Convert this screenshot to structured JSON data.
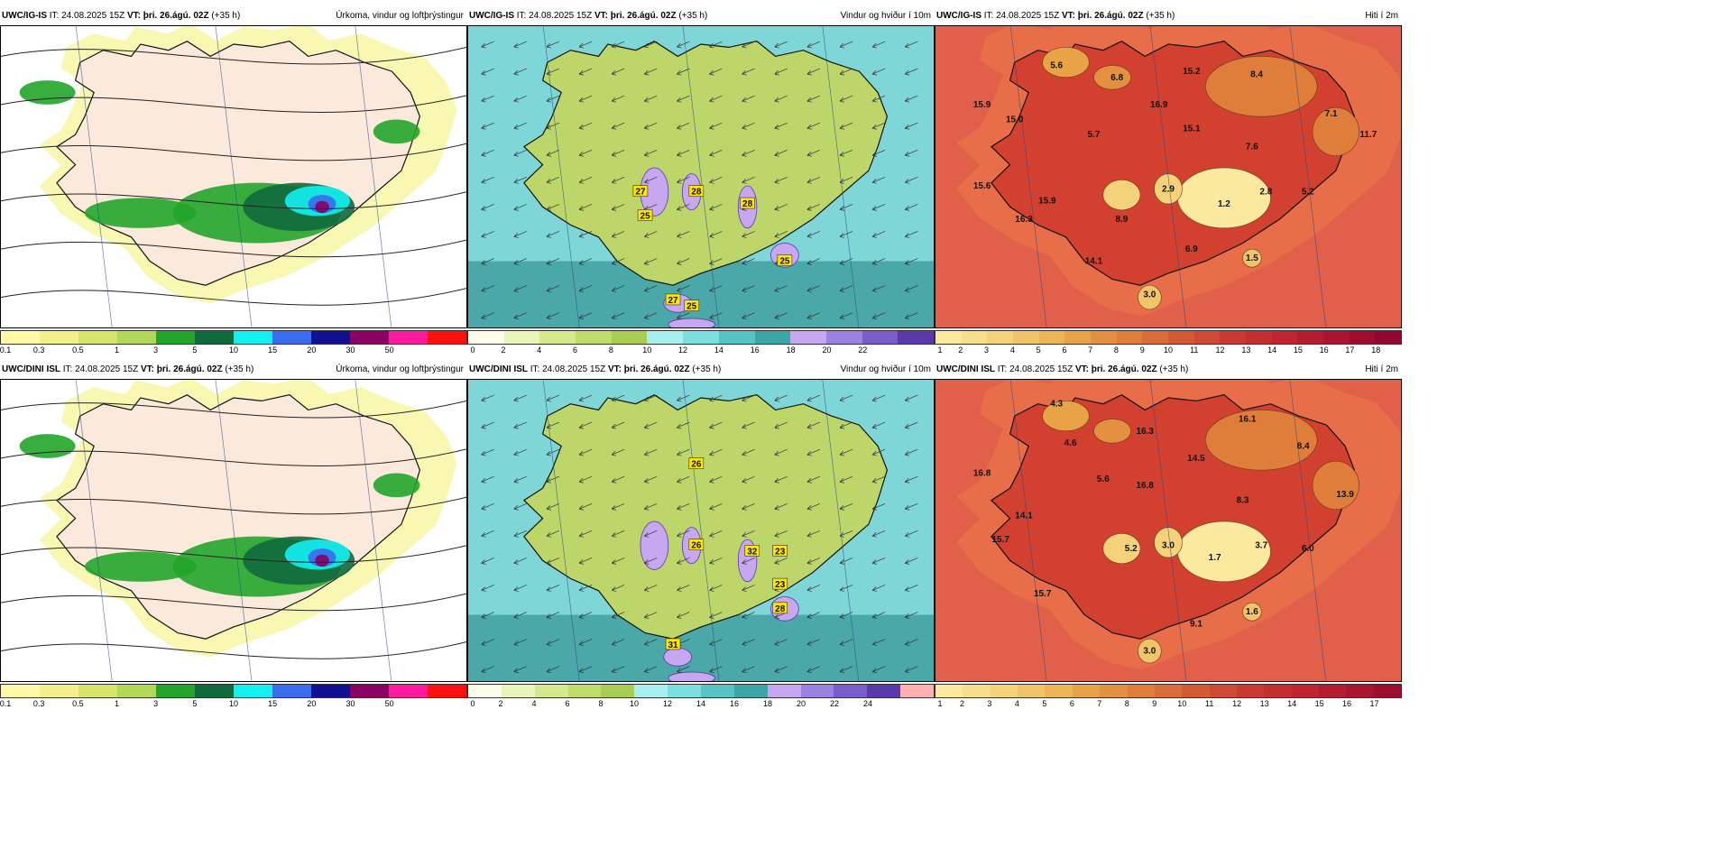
{
  "panels": [
    {
      "id": "p1",
      "model": "UWC/IG-IS",
      "it": "24.08.2025 15Z",
      "vt": "þri. 26.ágú. 02Z",
      "lead": "(+35 h)",
      "title": "Úrkoma, vindur og loftþrýstingur",
      "kind": "precip",
      "colorbar": {
        "colors": [
          "#fff9a8",
          "#f3f08a",
          "#d6e46a",
          "#b2d85a",
          "#22a52a",
          "#116a3d",
          "#12f0f0",
          "#3a6cf0",
          "#101090",
          "#8a0063",
          "#ff1a9e",
          "#ff1010"
        ],
        "labels": [
          "0.1",
          "0.3",
          "0.5",
          "1",
          "3",
          "5",
          "10",
          "15",
          "20",
          "30",
          "50"
        ]
      },
      "values": []
    },
    {
      "id": "p2",
      "model": "UWC/IG-IS",
      "it": "24.08.2025 15Z",
      "vt": "þri. 26.ágú. 02Z",
      "lead": "(+35 h)",
      "title": "Vindur og hviður í 10m",
      "kind": "wind",
      "colorbar": {
        "colors": [
          "#fbfde8",
          "#e8f4b8",
          "#d3e98a",
          "#bfdc6a",
          "#a9cc52",
          "#a8f0f0",
          "#7ddede",
          "#56c4c4",
          "#3aa6a6",
          "#c7a7f0",
          "#9b82e0",
          "#7a5ccc",
          "#5a3aaa"
        ],
        "labels": [
          "0",
          "2",
          "4",
          "6",
          "8",
          "10",
          "12",
          "14",
          "16",
          "18",
          "20",
          "22"
        ]
      },
      "values": [
        {
          "v": "27",
          "x": 0.37,
          "y": 0.55
        },
        {
          "v": "28",
          "x": 0.49,
          "y": 0.55
        },
        {
          "v": "25",
          "x": 0.38,
          "y": 0.63
        },
        {
          "v": "28",
          "x": 0.6,
          "y": 0.59
        },
        {
          "v": "25",
          "x": 0.68,
          "y": 0.78
        },
        {
          "v": "27",
          "x": 0.44,
          "y": 0.91
        },
        {
          "v": "25",
          "x": 0.48,
          "y": 0.93
        }
      ]
    },
    {
      "id": "p3",
      "model": "UWC/IG-IS",
      "it": "24.08.2025 15Z",
      "vt": "þri. 26.ágú. 02Z",
      "lead": "(+35 h)",
      "title": "Hiti í 2m",
      "kind": "temp",
      "colorbar": {
        "colors": [
          "#fbe9a0",
          "#f7de8a",
          "#f4d27a",
          "#f0c468",
          "#ecb556",
          "#e8a346",
          "#e39040",
          "#de7e3a",
          "#d96c38",
          "#d45a36",
          "#cf4a34",
          "#ca3a32",
          "#c52e30",
          "#bf2430",
          "#b51c30",
          "#aa1430",
          "#9e0c30",
          "#920630"
        ],
        "labels": [
          "1",
          "2",
          "3",
          "4",
          "5",
          "6",
          "7",
          "8",
          "9",
          "10",
          "11",
          "12",
          "13",
          "14",
          "15",
          "16",
          "17",
          "18"
        ]
      },
      "values": [
        {
          "v": "5.6",
          "x": 0.26,
          "y": 0.13
        },
        {
          "v": "6.8",
          "x": 0.39,
          "y": 0.17
        },
        {
          "v": "15.2",
          "x": 0.55,
          "y": 0.15
        },
        {
          "v": "8.4",
          "x": 0.69,
          "y": 0.16
        },
        {
          "v": "15.9",
          "x": 0.1,
          "y": 0.26
        },
        {
          "v": "15.0",
          "x": 0.17,
          "y": 0.31
        },
        {
          "v": "16.9",
          "x": 0.48,
          "y": 0.26
        },
        {
          "v": "15.1",
          "x": 0.55,
          "y": 0.34
        },
        {
          "v": "7.1",
          "x": 0.85,
          "y": 0.29
        },
        {
          "v": "5.7",
          "x": 0.34,
          "y": 0.36
        },
        {
          "v": "7.6",
          "x": 0.68,
          "y": 0.4
        },
        {
          "v": "11.7",
          "x": 0.93,
          "y": 0.36
        },
        {
          "v": "15.6",
          "x": 0.1,
          "y": 0.53
        },
        {
          "v": "15.9",
          "x": 0.24,
          "y": 0.58
        },
        {
          "v": "2.9",
          "x": 0.5,
          "y": 0.54
        },
        {
          "v": "1.2",
          "x": 0.62,
          "y": 0.59
        },
        {
          "v": "2.8",
          "x": 0.71,
          "y": 0.55
        },
        {
          "v": "5.2",
          "x": 0.8,
          "y": 0.55
        },
        {
          "v": "16.3",
          "x": 0.19,
          "y": 0.64
        },
        {
          "v": "8.9",
          "x": 0.4,
          "y": 0.64
        },
        {
          "v": "6.9",
          "x": 0.55,
          "y": 0.74
        },
        {
          "v": "1.5",
          "x": 0.68,
          "y": 0.77
        },
        {
          "v": "14.1",
          "x": 0.34,
          "y": 0.78
        },
        {
          "v": "3.0",
          "x": 0.46,
          "y": 0.89
        }
      ]
    },
    {
      "id": "p4",
      "model": "UWC/DINI ISL",
      "it": "24.08.2025 15Z",
      "vt": "þri. 26.ágú. 02Z",
      "lead": "(+35 h)",
      "title": "Úrkoma, vindur og loftþrýstingur",
      "kind": "precip",
      "colorbar": {
        "colors": [
          "#fff9a8",
          "#f3f08a",
          "#d6e46a",
          "#b2d85a",
          "#22a52a",
          "#116a3d",
          "#12f0f0",
          "#3a6cf0",
          "#101090",
          "#8a0063",
          "#ff1a9e",
          "#ff1010"
        ],
        "labels": [
          "0.1",
          "0.3",
          "0.5",
          "1",
          "3",
          "5",
          "10",
          "15",
          "20",
          "30",
          "50"
        ]
      },
      "values": []
    },
    {
      "id": "p5",
      "model": "UWC/DINI ISL",
      "it": "24.08.2025 15Z",
      "vt": "þri. 26.ágú. 02Z",
      "lead": "(+35 h)",
      "title": "Vindur og hviður í 10m",
      "kind": "wind",
      "colorbar": {
        "colors": [
          "#fbfde8",
          "#e8f4b8",
          "#d3e98a",
          "#bfdc6a",
          "#a9cc52",
          "#a8f0f0",
          "#7ddede",
          "#56c4c4",
          "#3aa6a6",
          "#c7a7f0",
          "#9b82e0",
          "#7a5ccc",
          "#5a3aaa",
          "#ffb0b0"
        ],
        "labels": [
          "0",
          "2",
          "4",
          "6",
          "8",
          "10",
          "12",
          "14",
          "16",
          "18",
          "20",
          "22",
          "24"
        ]
      },
      "values": [
        {
          "v": "26",
          "x": 0.49,
          "y": 0.28
        },
        {
          "v": "26",
          "x": 0.49,
          "y": 0.55
        },
        {
          "v": "32",
          "x": 0.61,
          "y": 0.57
        },
        {
          "v": "23",
          "x": 0.67,
          "y": 0.57
        },
        {
          "v": "23",
          "x": 0.67,
          "y": 0.68
        },
        {
          "v": "28",
          "x": 0.67,
          "y": 0.76
        },
        {
          "v": "31",
          "x": 0.44,
          "y": 0.88
        }
      ]
    },
    {
      "id": "p6",
      "model": "UWC/DINI ISL",
      "it": "24.08.2025 15Z",
      "vt": "þri. 26.ágú. 02Z",
      "lead": "(+35 h)",
      "title": "Hiti í 2m",
      "kind": "temp",
      "colorbar": {
        "colors": [
          "#fbe9a0",
          "#f7de8a",
          "#f4d27a",
          "#f0c468",
          "#ecb556",
          "#e8a346",
          "#e39040",
          "#de7e3a",
          "#d96c38",
          "#d45a36",
          "#cf4a34",
          "#ca3a32",
          "#c52e30",
          "#bf2430",
          "#b51c30",
          "#aa1430",
          "#9e0c30"
        ],
        "labels": [
          "1",
          "2",
          "3",
          "4",
          "5",
          "6",
          "7",
          "8",
          "9",
          "10",
          "11",
          "12",
          "13",
          "14",
          "15",
          "16",
          "17"
        ]
      },
      "values": [
        {
          "v": "4.3",
          "x": 0.26,
          "y": 0.08
        },
        {
          "v": "16.1",
          "x": 0.67,
          "y": 0.13
        },
        {
          "v": "4.6",
          "x": 0.29,
          "y": 0.21
        },
        {
          "v": "16.3",
          "x": 0.45,
          "y": 0.17
        },
        {
          "v": "8.4",
          "x": 0.79,
          "y": 0.22
        },
        {
          "v": "14.5",
          "x": 0.56,
          "y": 0.26
        },
        {
          "v": "16.8",
          "x": 0.1,
          "y": 0.31
        },
        {
          "v": "5.6",
          "x": 0.36,
          "y": 0.33
        },
        {
          "v": "16.8",
          "x": 0.45,
          "y": 0.35
        },
        {
          "v": "8.3",
          "x": 0.66,
          "y": 0.4
        },
        {
          "v": "13.9",
          "x": 0.88,
          "y": 0.38
        },
        {
          "v": "14.1",
          "x": 0.19,
          "y": 0.45
        },
        {
          "v": "5.2",
          "x": 0.42,
          "y": 0.56
        },
        {
          "v": "3.0",
          "x": 0.5,
          "y": 0.55
        },
        {
          "v": "1.7",
          "x": 0.6,
          "y": 0.59
        },
        {
          "v": "3.7",
          "x": 0.7,
          "y": 0.55
        },
        {
          "v": "6.0",
          "x": 0.8,
          "y": 0.56
        },
        {
          "v": "15.7",
          "x": 0.14,
          "y": 0.53
        },
        {
          "v": "15.7",
          "x": 0.23,
          "y": 0.71
        },
        {
          "v": "1.6",
          "x": 0.68,
          "y": 0.77
        },
        {
          "v": "9.1",
          "x": 0.56,
          "y": 0.81
        },
        {
          "v": "3.0",
          "x": 0.46,
          "y": 0.9
        }
      ]
    }
  ]
}
